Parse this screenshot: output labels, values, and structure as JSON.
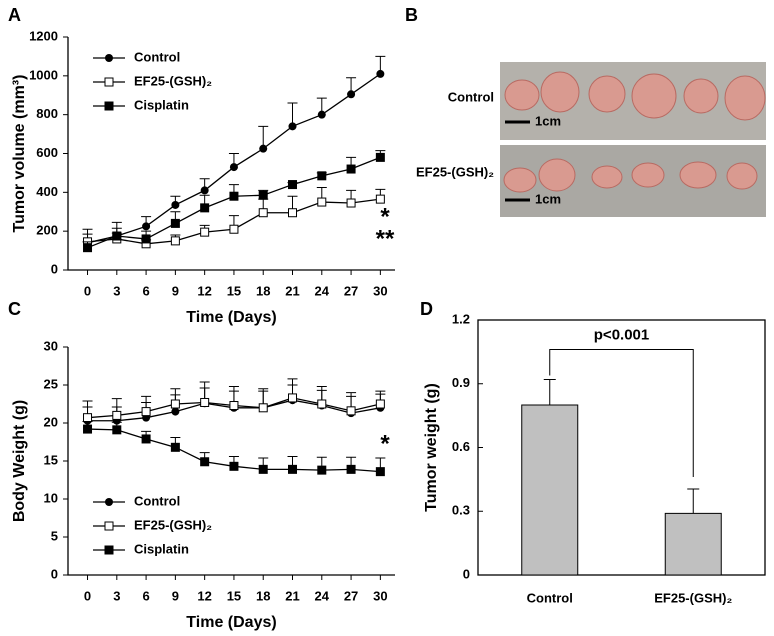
{
  "chart_data": [
    {
      "type": "line",
      "panel": "A",
      "x_label": "Time (Days)",
      "y_label": "Tumor volume (mm³)",
      "x": [
        0,
        3,
        6,
        9,
        12,
        15,
        18,
        21,
        24,
        27,
        30
      ],
      "xlim": [
        -2,
        31.5
      ],
      "xticks": [
        0,
        3,
        6,
        9,
        12,
        15,
        18,
        21,
        24,
        27,
        30
      ],
      "ylim": [
        0,
        1200
      ],
      "yticks": [
        0,
        200,
        400,
        600,
        800,
        1000,
        1200
      ],
      "grid": false,
      "legend": "upper left",
      "series": [
        {
          "name": "Control",
          "color": "#000000",
          "marker": "circle",
          "values": [
            140,
            175,
            225,
            335,
            410,
            530,
            625,
            740,
            800,
            905,
            1010
          ],
          "errors": [
            70,
            70,
            50,
            45,
            60,
            70,
            115,
            120,
            85,
            85,
            90
          ]
        },
        {
          "name": "EF25-(GSH)₂",
          "color": "#000000",
          "marker": "square-open",
          "values": [
            145,
            160,
            135,
            150,
            195,
            210,
            295,
            295,
            350,
            345,
            365
          ],
          "errors": [
            40,
            30,
            20,
            30,
            35,
            70,
            70,
            85,
            75,
            65,
            50
          ]
        },
        {
          "name": "Cisplatin",
          "color": "#000000",
          "marker": "square",
          "values": [
            115,
            175,
            160,
            240,
            320,
            380,
            385,
            440,
            485,
            520,
            580
          ],
          "errors": [
            30,
            40,
            40,
            60,
            65,
            60,
            25,
            10,
            15,
            60,
            35
          ]
        }
      ],
      "annotations": [
        "*",
        "**"
      ]
    },
    {
      "type": "line",
      "panel": "C",
      "x_label": "Time (Days)",
      "y_label": "Body Weight (g)",
      "x": [
        0,
        3,
        6,
        9,
        12,
        15,
        18,
        21,
        24,
        27,
        30
      ],
      "xlim": [
        -2,
        31.5
      ],
      "xticks": [
        0,
        3,
        6,
        9,
        12,
        15,
        18,
        21,
        24,
        27,
        30
      ],
      "ylim": [
        0,
        30
      ],
      "yticks": [
        0,
        5,
        10,
        15,
        20,
        25,
        30
      ],
      "grid": false,
      "legend": "lower left",
      "series": [
        {
          "name": "Control",
          "color": "#000000",
          "marker": "circle",
          "values": [
            20.3,
            20.3,
            20.7,
            21.5,
            22.6,
            22.0,
            22.0,
            23.0,
            22.3,
            21.3,
            22.0
          ],
          "errors": [
            1.8,
            1.8,
            2.0,
            2.2,
            2.0,
            2.2,
            2.2,
            2.0,
            2.0,
            2.2,
            1.8
          ]
        },
        {
          "name": "EF25-(GSH)₂",
          "color": "#000000",
          "marker": "square-open",
          "values": [
            20.7,
            21.0,
            21.5,
            22.5,
            22.7,
            22.3,
            22.0,
            23.3,
            22.5,
            21.6,
            22.5
          ],
          "errors": [
            2.2,
            2.2,
            2.0,
            2.0,
            2.7,
            2.5,
            2.5,
            2.5,
            2.3,
            2.4,
            1.7
          ]
        },
        {
          "name": "Cisplatin",
          "color": "#000000",
          "marker": "square",
          "values": [
            19.2,
            19.1,
            17.9,
            16.8,
            14.9,
            14.3,
            13.9,
            13.9,
            13.8,
            13.9,
            13.6
          ],
          "errors": [
            1.0,
            1.0,
            1.0,
            1.3,
            1.2,
            1.3,
            1.5,
            1.7,
            1.7,
            1.6,
            1.8
          ]
        }
      ],
      "annotations": [
        "*"
      ]
    },
    {
      "type": "bar",
      "panel": "D",
      "y_label": "Tumor weight (g)",
      "categories": [
        "Control",
        "EF25-(GSH)₂"
      ],
      "values": [
        0.8,
        0.29
      ],
      "errors": [
        0.12,
        0.115
      ],
      "color": "#c0c0c0",
      "ylim": [
        0,
        1.2
      ],
      "yticks": [
        0,
        0.3,
        0.6,
        0.9,
        1.2
      ],
      "grid": false,
      "annotations": [
        "p<0.001"
      ]
    }
  ],
  "photo": {
    "panel": "B",
    "rows": [
      {
        "label": "Control",
        "scale": "1cm"
      },
      {
        "label": "EF25-(GSH)₂",
        "scale": "1cm"
      }
    ]
  }
}
